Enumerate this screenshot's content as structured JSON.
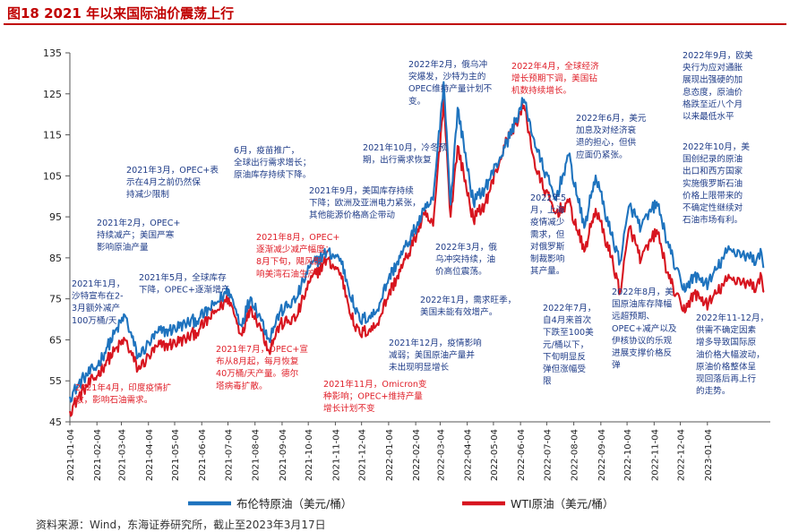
{
  "figure_title": "图18  2021 年以来国际油价震荡上行",
  "source_note": "资料来源：Wind，东海证券研究所，截止至2023年3月17日",
  "colors": {
    "brent": "#1e73be",
    "wti": "#d7151f",
    "title": "#c00000",
    "annotation_blue": "#1f3c88",
    "annotation_red": "#e0202a"
  },
  "chart_data": {
    "type": "line",
    "title": "2021 年以来国际油价震荡上行",
    "xlabel": "",
    "ylabel": "",
    "ylim": [
      45,
      135
    ],
    "yticks": [
      45,
      55,
      65,
      75,
      85,
      95,
      105,
      115,
      125,
      135
    ],
    "xlim": [
      "2021-01-04",
      "2023-03-17"
    ],
    "xticks": [
      "2021-01-04",
      "2021-02-04",
      "2021-03-04",
      "2021-04-04",
      "2021-05-04",
      "2021-06-04",
      "2021-07-04",
      "2021-08-04",
      "2021-09-04",
      "2021-10-04",
      "2021-11-04",
      "2021-12-04",
      "2022-01-04",
      "2022-02-04",
      "2022-03-04",
      "2022-04-04",
      "2022-05-04",
      "2022-06-04",
      "2022-07-04",
      "2022-08-04",
      "2022-09-04",
      "2022-10-04",
      "2022-11-04",
      "2022-12-04",
      "2023-01-04"
    ],
    "grid": false,
    "legend_position": "bottom",
    "series": [
      {
        "name": "布伦特原油（美元/桶）",
        "color": "#1e73be",
        "anchors": [
          [
            "2021-01-04",
            51.1
          ],
          [
            "2021-01-20",
            55.8
          ],
          [
            "2021-02-04",
            58.5
          ],
          [
            "2021-02-16",
            63.3
          ],
          [
            "2021-03-08",
            71.0
          ],
          [
            "2021-03-23",
            60.8
          ],
          [
            "2021-04-15",
            66.9
          ],
          [
            "2021-04-28",
            67.3
          ],
          [
            "2021-05-18",
            69.0
          ],
          [
            "2021-06-01",
            70.2
          ],
          [
            "2021-06-18",
            73.4
          ],
          [
            "2021-07-05",
            77.2
          ],
          [
            "2021-07-19",
            68.6
          ],
          [
            "2021-07-30",
            75.4
          ],
          [
            "2021-08-10",
            70.6
          ],
          [
            "2021-08-20",
            65.2
          ],
          [
            "2021-09-01",
            71.6
          ],
          [
            "2021-09-20",
            74.9
          ],
          [
            "2021-10-05",
            82.6
          ],
          [
            "2021-10-25",
            86.4
          ],
          [
            "2021-11-10",
            84.8
          ],
          [
            "2021-11-26",
            72.7
          ],
          [
            "2021-12-02",
            69.7
          ],
          [
            "2021-12-20",
            71.5
          ],
          [
            "2022-01-04",
            80.0
          ],
          [
            "2022-01-25",
            88.2
          ],
          [
            "2022-02-14",
            96.5
          ],
          [
            "2022-02-24",
            99.1
          ],
          [
            "2022-03-08",
            127.9
          ],
          [
            "2022-03-16",
            98.0
          ],
          [
            "2022-03-24",
            121.6
          ],
          [
            "2022-04-11",
            98.5
          ],
          [
            "2022-04-25",
            102.3
          ],
          [
            "2022-05-17",
            111.9
          ],
          [
            "2022-06-08",
            123.6
          ],
          [
            "2022-06-22",
            111.7
          ],
          [
            "2022-07-14",
            99.1
          ],
          [
            "2022-07-29",
            110.0
          ],
          [
            "2022-08-16",
            92.3
          ],
          [
            "2022-08-29",
            105.1
          ],
          [
            "2022-09-16",
            90.6
          ],
          [
            "2022-09-26",
            84.1
          ],
          [
            "2022-10-07",
            97.9
          ],
          [
            "2022-10-20",
            92.4
          ],
          [
            "2022-11-07",
            98.6
          ],
          [
            "2022-11-21",
            87.5
          ],
          [
            "2022-12-07",
            77.2
          ],
          [
            "2022-12-20",
            80.5
          ],
          [
            "2023-01-05",
            78.7
          ],
          [
            "2023-01-27",
            86.7
          ],
          [
            "2023-02-10",
            86.4
          ],
          [
            "2023-03-01",
            84.3
          ],
          [
            "2023-03-07",
            86.2
          ],
          [
            "2023-03-10",
            82.8
          ]
        ]
      },
      {
        "name": "WTI原油（美元/桶）",
        "color": "#d7151f",
        "anchors": [
          [
            "2021-01-04",
            47.6
          ],
          [
            "2021-01-20",
            52.9
          ],
          [
            "2021-02-04",
            56.2
          ],
          [
            "2021-02-16",
            60.1
          ],
          [
            "2021-03-08",
            65.1
          ],
          [
            "2021-03-23",
            57.8
          ],
          [
            "2021-04-15",
            63.5
          ],
          [
            "2021-04-28",
            63.8
          ],
          [
            "2021-05-18",
            65.3
          ],
          [
            "2021-06-01",
            67.5
          ],
          [
            "2021-06-18",
            71.4
          ],
          [
            "2021-07-05",
            75.2
          ],
          [
            "2021-07-19",
            66.4
          ],
          [
            "2021-07-30",
            73.1
          ],
          [
            "2021-08-10",
            68.3
          ],
          [
            "2021-08-20",
            62.3
          ],
          [
            "2021-09-01",
            68.6
          ],
          [
            "2021-09-20",
            70.3
          ],
          [
            "2021-10-05",
            78.9
          ],
          [
            "2021-10-25",
            84.6
          ],
          [
            "2021-11-10",
            81.3
          ],
          [
            "2021-11-26",
            68.2
          ],
          [
            "2021-12-02",
            66.5
          ],
          [
            "2021-12-20",
            68.2
          ],
          [
            "2022-01-04",
            76.1
          ],
          [
            "2022-01-25",
            85.2
          ],
          [
            "2022-02-14",
            95.5
          ],
          [
            "2022-02-24",
            92.8
          ],
          [
            "2022-03-08",
            123.7
          ],
          [
            "2022-03-16",
            95.0
          ],
          [
            "2022-03-24",
            112.3
          ],
          [
            "2022-04-11",
            94.3
          ],
          [
            "2022-04-25",
            98.5
          ],
          [
            "2022-05-17",
            112.4
          ],
          [
            "2022-06-08",
            122.1
          ],
          [
            "2022-06-22",
            106.2
          ],
          [
            "2022-07-14",
            95.8
          ],
          [
            "2022-07-29",
            98.6
          ],
          [
            "2022-08-16",
            86.5
          ],
          [
            "2022-08-29",
            97.0
          ],
          [
            "2022-09-16",
            85.1
          ],
          [
            "2022-09-26",
            76.7
          ],
          [
            "2022-10-07",
            92.6
          ],
          [
            "2022-10-20",
            84.5
          ],
          [
            "2022-11-07",
            91.8
          ],
          [
            "2022-11-21",
            80.0
          ],
          [
            "2022-12-07",
            72.0
          ],
          [
            "2022-12-20",
            76.2
          ],
          [
            "2023-01-05",
            73.7
          ],
          [
            "2023-01-27",
            79.7
          ],
          [
            "2023-02-10",
            79.7
          ],
          [
            "2023-03-01",
            77.7
          ],
          [
            "2023-03-07",
            80.5
          ],
          [
            "2023-03-10",
            76.7
          ]
        ]
      }
    ],
    "annotations": [
      {
        "color": "red",
        "lines": [
          "2021年4月，印度疫情扩",
          "散，影响石油需求。"
        ]
      },
      {
        "color": "blue",
        "lines": [
          "2021年1月，",
          "沙特宣布在2-",
          "3月额外减产",
          "100万桶/天"
        ]
      },
      {
        "color": "blue",
        "lines": [
          "2021年2月，OPEC+",
          "持续减产；美国严寒",
          "影响原油产量"
        ]
      },
      {
        "color": "blue",
        "lines": [
          "2021年3月，OPEC+表",
          "示在4月之前仍然保",
          "持减少限制"
        ]
      },
      {
        "color": "blue",
        "lines": [
          "2021年5月，全球库存",
          "下降，OPEC+逐渐增产"
        ]
      },
      {
        "color": "blue",
        "lines": [
          "6月，疫苗推广，",
          "全球出行需求增长；",
          "原油库存持续下降。"
        ]
      },
      {
        "color": "red",
        "lines": [
          "2021年8月，OPEC+",
          "逐渐减少减产幅度；",
          "8月下旬，飓风影",
          "响美湾石油生产"
        ]
      },
      {
        "color": "red",
        "lines": [
          "2021年7月，OPEC+宣",
          "布从8月起，每月恢复",
          "40万桶/天产量。德尔",
          "塔病毒扩散。"
        ]
      },
      {
        "color": "blue",
        "lines": [
          "2021年9月，美国库存持续",
          "下降；欧洲及亚洲电力紧张，",
          "其他能源价格高企带动"
        ]
      },
      {
        "color": "blue",
        "lines": [
          "2021年10月，冷冬预",
          "期，出行需求恢复"
        ]
      },
      {
        "color": "red",
        "lines": [
          "2021年11月，Omicron变",
          "种影响；OPEC+维持产量",
          "增长计划不变"
        ]
      },
      {
        "color": "blue",
        "lines": [
          "2021年12月，疫情影响",
          "减弱；美国原油产量并",
          "未出现明显增长"
        ]
      },
      {
        "color": "blue",
        "lines": [
          "2022年1月，需求旺季，",
          "美国未能有效增产。"
        ]
      },
      {
        "color": "blue",
        "lines": [
          "2022年2月，俄乌冲",
          "突爆发，沙特为主的",
          "OPEC维持产量计划不",
          "变。"
        ]
      },
      {
        "color": "blue",
        "lines": [
          "2022年3月，俄",
          "乌冲突持续，油",
          "价高位震荡。"
        ]
      },
      {
        "color": "red",
        "lines": [
          "2022年4月，全球经济",
          "增长预期下调，美国钻",
          "机数持续增长。"
        ]
      },
      {
        "color": "blue",
        "lines": [
          "2022年5",
          "月，上海",
          "疫情减少",
          "需求，但",
          "对俄罗斯",
          "制裁影响",
          "其产量。"
        ]
      },
      {
        "color": "blue",
        "lines": [
          "2022年6月，美元",
          "加息及对经济衰",
          "退的担心，但供",
          "应面仍紧张。"
        ]
      },
      {
        "color": "blue",
        "lines": [
          "2022年7月，",
          "自4月来首次",
          "下跌至100美",
          "元/桶以下，",
          "下旬明显反",
          "弹但涨幅受",
          "限"
        ]
      },
      {
        "color": "blue",
        "lines": [
          "2022年8月，美",
          "国原油库存降幅",
          "远超预期、",
          "OPEC+减产以及",
          "伊核协议的乐观",
          "进展支撑价格反",
          "弹"
        ]
      },
      {
        "color": "blue",
        "lines": [
          "2022年9月，欧美",
          "央行为应对通胀",
          "展现出强硬的加",
          "息态度，原油价",
          "格跌至近八个月",
          "以来最低水平"
        ]
      },
      {
        "color": "blue",
        "lines": [
          "2022年10月，美",
          "国创纪录的原油",
          "出口和西方国家",
          "实施俄罗斯石油",
          "价格上限带来的",
          "不确定性继续对",
          "石油市场有利。"
        ]
      },
      {
        "color": "blue",
        "lines": [
          "2022年11-12月，",
          "供需不确定因素",
          "增多导致国际原",
          "油价格大幅波动，",
          "原油价格整体呈",
          "现回落后再上行",
          "的走势。"
        ]
      }
    ]
  }
}
